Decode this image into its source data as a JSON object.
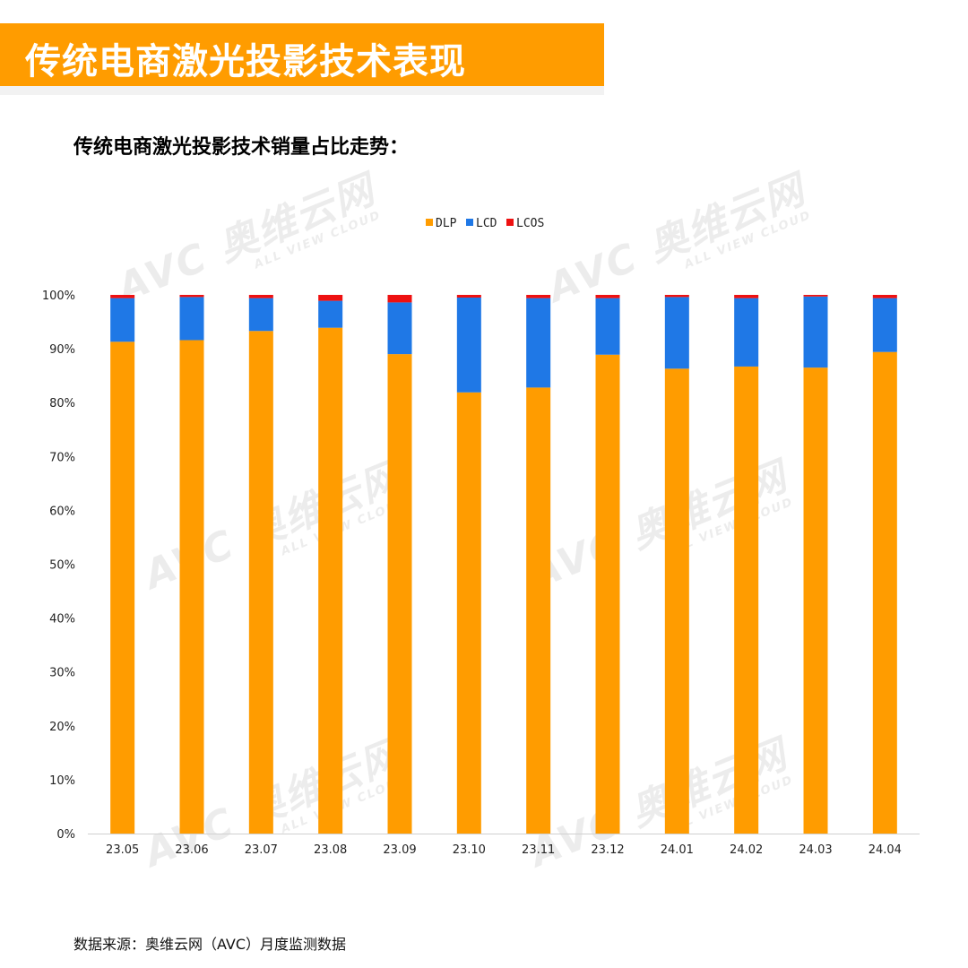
{
  "header": {
    "title": "传统电商激光投影技术表现"
  },
  "subtitle": "传统电商激光投影技术销量占比走势：",
  "source": "数据来源：奥维云网（AVC）月度监测数据",
  "watermark": {
    "brand": "AVC 奥维云网",
    "sub": "ALL VIEW CLOUD"
  },
  "colors": {
    "accent": "#ff9c00",
    "DLP": "#ff9c00",
    "LCD": "#1f78e6",
    "LCOS": "#ee1111"
  },
  "chart_data": {
    "type": "bar",
    "stacked": true,
    "title": "",
    "xlabel": "",
    "ylabel": "",
    "ylim": [
      0,
      100
    ],
    "yticks": [
      "0%",
      "10%",
      "20%",
      "30%",
      "40%",
      "50%",
      "60%",
      "70%",
      "80%",
      "90%",
      "100%"
    ],
    "legend_position": "top-center",
    "categories": [
      "23.05",
      "23.06",
      "23.07",
      "23.08",
      "23.09",
      "23.10",
      "23.11",
      "23.12",
      "24.01",
      "24.02",
      "24.03",
      "24.04"
    ],
    "series": [
      {
        "name": "DLP",
        "values": [
          91.3,
          91.6,
          93.3,
          93.9,
          89.0,
          81.9,
          82.8,
          88.9,
          86.3,
          86.7,
          86.5,
          89.4
        ]
      },
      {
        "name": "LCD",
        "values": [
          8.1,
          8.0,
          6.1,
          5.0,
          9.6,
          17.6,
          16.6,
          10.5,
          13.3,
          12.7,
          13.2,
          10.0
        ]
      },
      {
        "name": "LCOS",
        "values": [
          0.6,
          0.4,
          0.6,
          1.1,
          1.4,
          0.5,
          0.6,
          0.6,
          0.4,
          0.6,
          0.3,
          0.6
        ]
      }
    ]
  }
}
